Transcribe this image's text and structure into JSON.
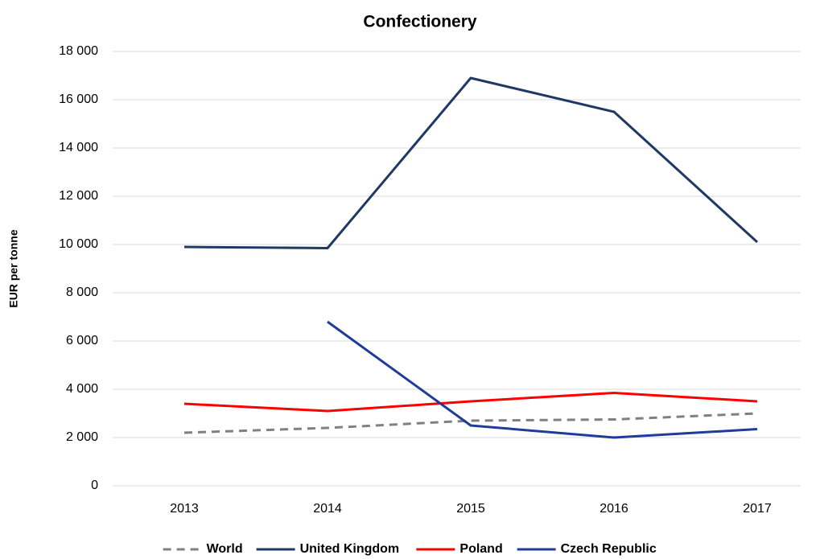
{
  "chart_data": {
    "type": "line",
    "title": "Confectionery",
    "y_label": "EUR per tonne",
    "categories": [
      "2013",
      "2014",
      "2015",
      "2016",
      "2017"
    ],
    "series": [
      {
        "name": "World",
        "color": "#808080",
        "dashed": true,
        "values": [
          2200,
          2400,
          2700,
          2750,
          3000
        ]
      },
      {
        "name": "United Kingdom",
        "color": "#203864",
        "values": [
          9900,
          9850,
          16900,
          15500,
          10100
        ]
      },
      {
        "name": "Poland",
        "color": "#ff0000",
        "values": [
          3400,
          3100,
          3500,
          3850,
          3500
        ]
      },
      {
        "name": "Czech Republic",
        "color": "#1f3c99",
        "values": [
          null,
          6800,
          2500,
          2000,
          2350
        ]
      }
    ],
    "ylim": [
      0,
      18000
    ],
    "yticks": [
      {
        "value": 0,
        "label": "0"
      },
      {
        "value": 2000,
        "label": "2 000"
      },
      {
        "value": 4000,
        "label": "4 000"
      },
      {
        "value": 6000,
        "label": "6 000"
      },
      {
        "value": 8000,
        "label": "8 000"
      },
      {
        "value": 10000,
        "label": "10 000"
      },
      {
        "value": 12000,
        "label": "12 000"
      },
      {
        "value": 14000,
        "label": "14 000"
      },
      {
        "value": 16000,
        "label": "16 000"
      },
      {
        "value": 18000,
        "label": "18 000"
      }
    ],
    "grid": true,
    "legend": "bottom"
  }
}
